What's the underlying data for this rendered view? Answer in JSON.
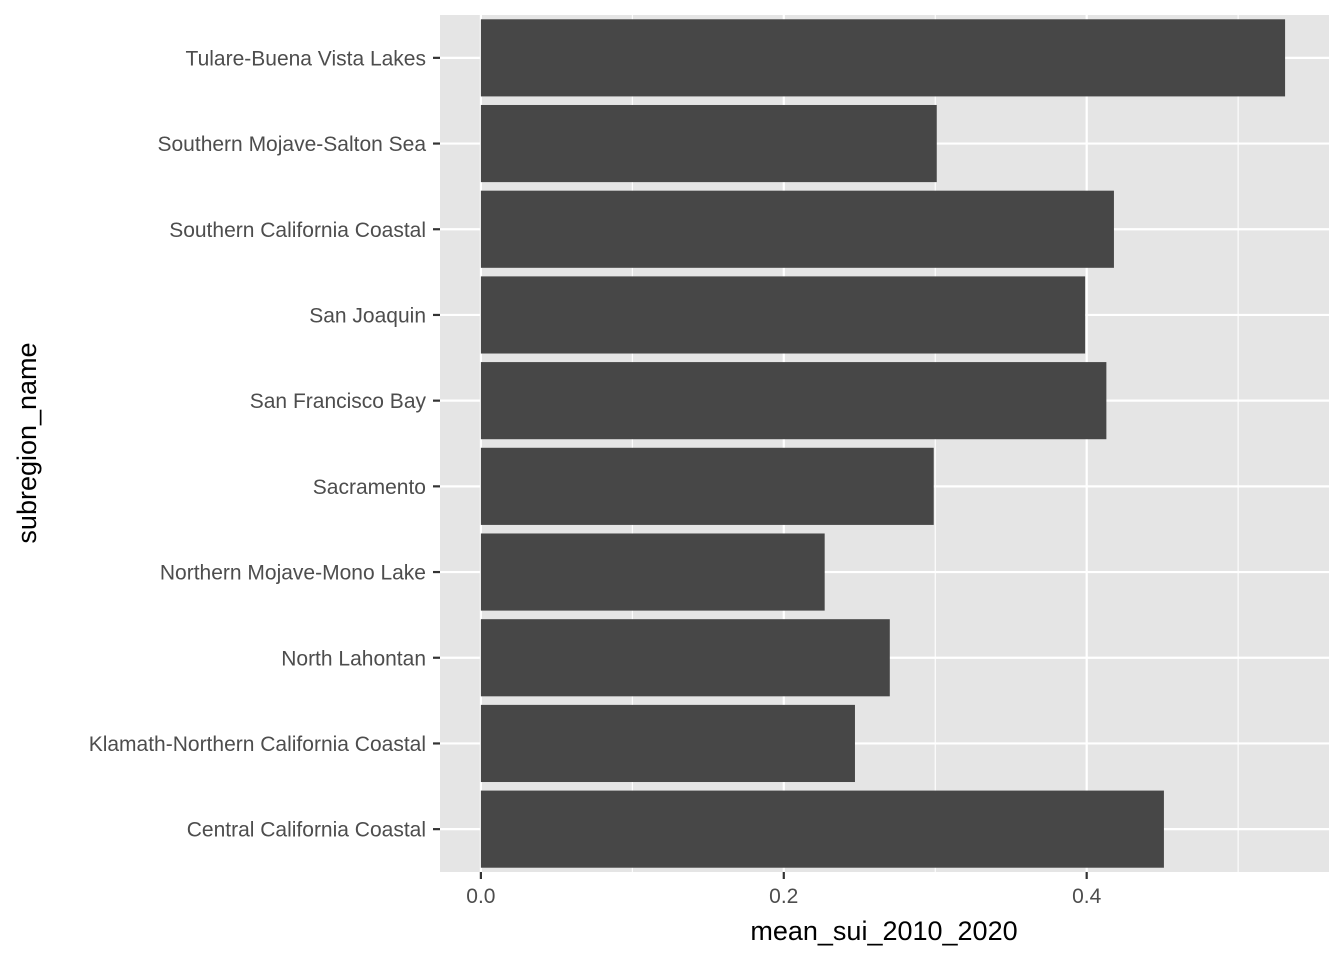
{
  "chart_data": {
    "type": "bar",
    "orientation": "horizontal",
    "xlabel": "mean_sui_2010_2020",
    "ylabel": "subregion_name",
    "xlim": [
      -0.027,
      0.56
    ],
    "xticks": [
      0.0,
      0.2,
      0.4
    ],
    "xtick_labels": [
      "0.0",
      "0.2",
      "0.4"
    ],
    "grid": true,
    "categories": [
      "Central California Coastal",
      "Klamath-Northern California Coastal",
      "North Lahontan",
      "Northern Mojave-Mono Lake",
      "Sacramento",
      "San Francisco Bay",
      "San Joaquin",
      "Southern California Coastal",
      "Southern Mojave-Salton Sea",
      "Tulare-Buena Vista Lakes"
    ],
    "values": [
      0.451,
      0.247,
      0.27,
      0.227,
      0.299,
      0.413,
      0.399,
      0.418,
      0.301,
      0.531
    ],
    "colors": {
      "panel": "#e5e5e5",
      "grid": "#ffffff",
      "bar": "#474747",
      "tick_text": "#4d4d4d",
      "tick_mark": "#333333"
    }
  }
}
